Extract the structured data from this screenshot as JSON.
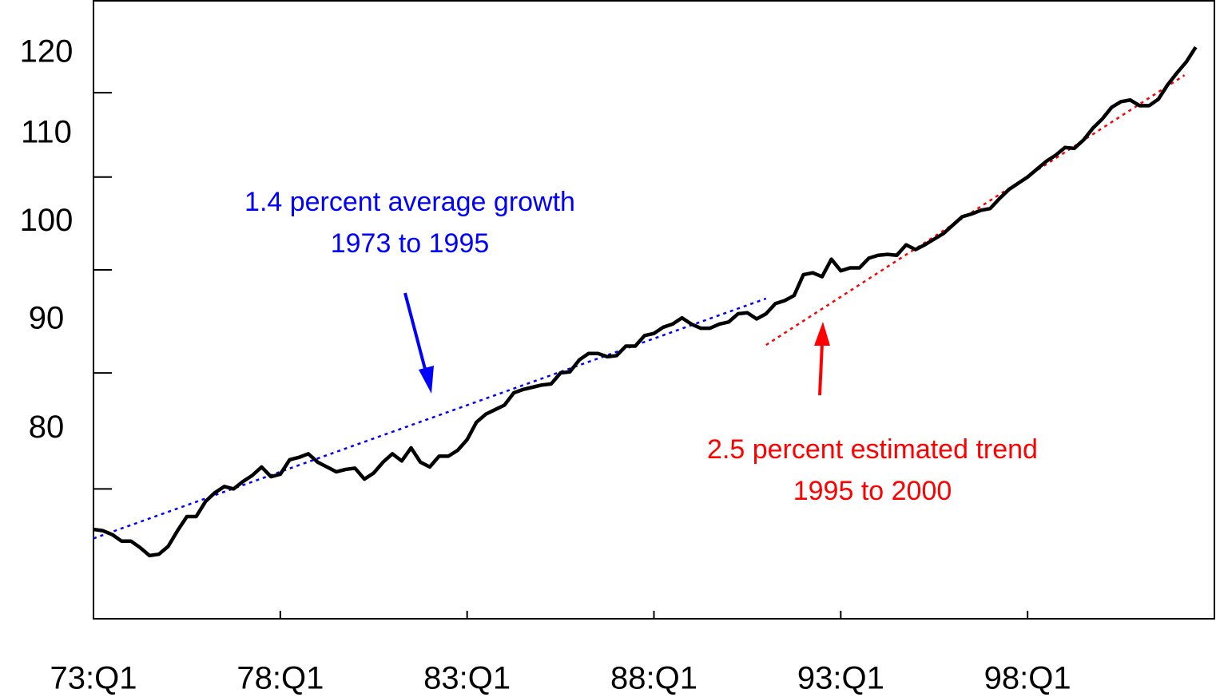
{
  "chart_data": {
    "type": "line",
    "log_scale": true,
    "xlim": [
      1973,
      2003
    ],
    "xticks": [
      {
        "value": 1973,
        "label": "73:Q1"
      },
      {
        "value": 1978,
        "label": "78:Q1"
      },
      {
        "value": 1983,
        "label": "83:Q1"
      },
      {
        "value": 1988,
        "label": "88:Q1"
      },
      {
        "value": 1993,
        "label": "93:Q1"
      },
      {
        "value": 1998,
        "label": "98:Q1"
      }
    ],
    "ylim": [
      65.2,
      127.1
    ],
    "yticks": [
      80,
      90,
      100,
      110,
      120
    ],
    "yminor_ticks": [
      75,
      85,
      95,
      105,
      115
    ],
    "x": [
      1973,
      1973.25,
      1973.5,
      1973.75,
      1974,
      1974.25,
      1974.5,
      1974.75,
      1975,
      1975.25,
      1975.5,
      1975.75,
      1976,
      1976.25,
      1976.5,
      1976.75,
      1977,
      1977.25,
      1977.5,
      1977.75,
      1978,
      1978.25,
      1978.5,
      1978.75,
      1979,
      1979.25,
      1979.5,
      1979.75,
      1980,
      1980.25,
      1980.5,
      1980.75,
      1981,
      1981.25,
      1981.5,
      1981.75,
      1982,
      1982.25,
      1982.5,
      1982.75,
      1983,
      1983.25,
      1983.5,
      1983.75,
      1984,
      1984.25,
      1984.5,
      1984.75,
      1985,
      1985.25,
      1985.5,
      1985.75,
      1986,
      1986.25,
      1986.5,
      1986.75,
      1987,
      1987.25,
      1987.5,
      1987.75,
      1988,
      1988.25,
      1988.5,
      1988.75,
      1989,
      1989.25,
      1989.5,
      1989.75,
      1990,
      1990.25,
      1990.5,
      1990.75,
      1991,
      1991.25,
      1991.5,
      1991.75,
      1992,
      1992.25,
      1992.5,
      1992.75,
      1993,
      1993.25,
      1993.5,
      1993.75,
      1994,
      1994.25,
      1994.5,
      1994.75,
      1995,
      1995.25,
      1995.5,
      1995.75,
      1996,
      1996.25,
      1996.5,
      1996.75,
      1997,
      1997.25,
      1997.5,
      1997.75,
      1998,
      1998.25,
      1998.5,
      1998.75,
      1999,
      1999.25,
      1999.5,
      1999.75,
      2000,
      2000.25,
      2000.5,
      2000.75,
      2001,
      2001.25,
      2001.5,
      2001.75,
      2002,
      2002.25,
      2002.5
    ],
    "series": [
      {
        "color": "#000000",
        "values": [
          71.8,
          71.7,
          71.4,
          70.9,
          70.9,
          70.4,
          69.8,
          69.9,
          70.5,
          71.7,
          72.8,
          72.8,
          74.0,
          74.7,
          75.2,
          75.0,
          75.6,
          76.1,
          76.8,
          76.0,
          76.2,
          77.4,
          77.6,
          77.9,
          77.2,
          76.8,
          76.4,
          76.6,
          76.7,
          75.8,
          76.3,
          77.2,
          77.9,
          77.3,
          78.4,
          77.2,
          76.8,
          77.7,
          77.7,
          78.2,
          79.1,
          80.6,
          81.3,
          81.7,
          82.1,
          83.2,
          83.5,
          83.7,
          83.9,
          84.0,
          85.0,
          85.1,
          86.2,
          86.8,
          86.8,
          86.5,
          86.6,
          87.5,
          87.5,
          88.5,
          88.7,
          89.3,
          89.6,
          90.2,
          89.6,
          89.2,
          89.2,
          89.6,
          89.8,
          90.6,
          90.7,
          90.1,
          90.6,
          91.6,
          91.9,
          92.4,
          94.5,
          94.7,
          94.3,
          96.1,
          94.9,
          95.2,
          95.2,
          96.2,
          96.5,
          96.6,
          96.5,
          97.6,
          97.1,
          97.6,
          98.2,
          98.8,
          99.7,
          100.6,
          100.9,
          101.3,
          101.5,
          102.6,
          103.6,
          104.3,
          105.0,
          105.9,
          106.8,
          107.5,
          108.4,
          108.3,
          109.3,
          110.7,
          111.8,
          113.2,
          113.9,
          114.1,
          113.4,
          113.4,
          114.2,
          116.0,
          117.5,
          118.9,
          120.8
        ]
      }
    ],
    "trends": [
      {
        "color": "#0000ff",
        "x": [
          1973,
          1991
        ],
        "values": [
          71.1,
          92.1
        ]
      },
      {
        "color": "#ff0000",
        "x": [
          1991,
          2002.2
        ],
        "values": [
          87.6,
          117.2
        ]
      }
    ],
    "annotations": [
      {
        "color": "#0000ff",
        "lines": [
          "1.4 percent average growth",
          "1973 to 1995"
        ]
      },
      {
        "color": "#ff0000",
        "lines": [
          "2.5 percent estimated trend",
          "1995 to 2000"
        ]
      }
    ]
  }
}
